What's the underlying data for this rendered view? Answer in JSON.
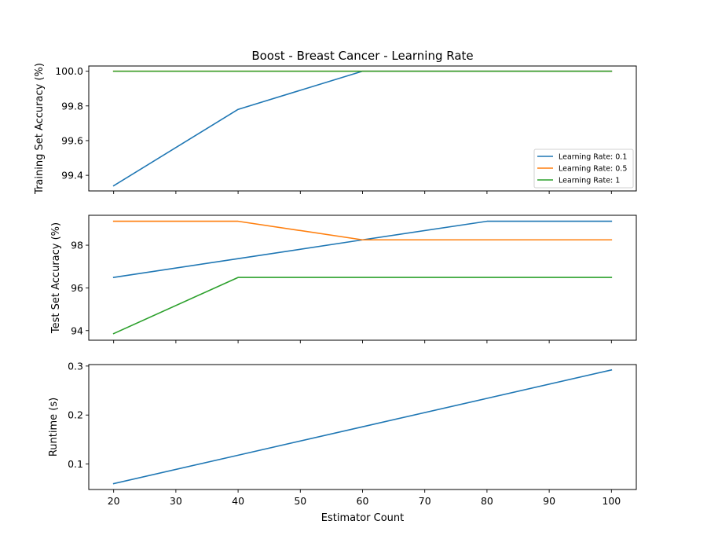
{
  "chart_data": {
    "type": "line",
    "title": "Boost - Breast Cancer - Learning Rate",
    "xlabel": "Estimator Count",
    "x_ticks": [
      20,
      30,
      40,
      50,
      60,
      70,
      80,
      90,
      100
    ],
    "xlim": [
      16,
      104
    ],
    "grid": false,
    "panels": [
      {
        "id": "training",
        "ylabel": "Training Set Accuracy (%)",
        "ylim": [
          99.31,
          100.03
        ],
        "y_ticks": [
          99.4,
          99.6,
          99.8,
          100.0
        ],
        "y_tick_labels": [
          "99.4",
          "99.6",
          "99.8",
          "100.0"
        ],
        "legend": "lower right",
        "series": [
          {
            "name": "Learning Rate: 0.1",
            "color": "#1f77b4",
            "x": [
              20,
              40,
              60,
              80,
              100
            ],
            "y": [
              99.34,
              99.78,
              100.0,
              100.0,
              100.0
            ]
          },
          {
            "name": "Learning Rate: 0.5",
            "color": "#ff7f0e",
            "x": [
              20,
              40,
              60,
              80,
              100
            ],
            "y": [
              100.0,
              100.0,
              100.0,
              100.0,
              100.0
            ]
          },
          {
            "name": "Learning Rate: 1",
            "color": "#2ca02c",
            "x": [
              20,
              40,
              60,
              80,
              100
            ],
            "y": [
              100.0,
              100.0,
              100.0,
              100.0,
              100.0
            ]
          }
        ]
      },
      {
        "id": "test",
        "ylabel": "Test Set Accuracy (%)",
        "ylim": [
          93.55,
          99.4
        ],
        "y_ticks": [
          94,
          96,
          98
        ],
        "y_tick_labels": [
          "94",
          "96",
          "98"
        ],
        "series": [
          {
            "color": "#1f77b4",
            "x": [
              20,
              40,
              60,
              80,
              100
            ],
            "y": [
              96.49,
              97.37,
              98.25,
              99.12,
              99.12
            ]
          },
          {
            "color": "#ff7f0e",
            "x": [
              20,
              40,
              60,
              80,
              100
            ],
            "y": [
              99.12,
              99.12,
              98.25,
              98.25,
              98.25
            ]
          },
          {
            "color": "#2ca02c",
            "x": [
              20,
              40,
              60,
              80,
              100
            ],
            "y": [
              93.86,
              96.49,
              96.49,
              96.49,
              96.49
            ]
          }
        ]
      },
      {
        "id": "runtime",
        "ylabel": "Runtime (s)",
        "ylim": [
          0.048,
          0.303
        ],
        "y_ticks": [
          0.1,
          0.2,
          0.3
        ],
        "y_tick_labels": [
          "0.1",
          "0.2",
          "0.3"
        ],
        "series": [
          {
            "color": "#1f77b4",
            "x": [
              20,
              40,
              60,
              80,
              100
            ],
            "y": [
              0.06,
              0.118,
              0.176,
              0.234,
              0.292
            ]
          }
        ]
      }
    ]
  }
}
